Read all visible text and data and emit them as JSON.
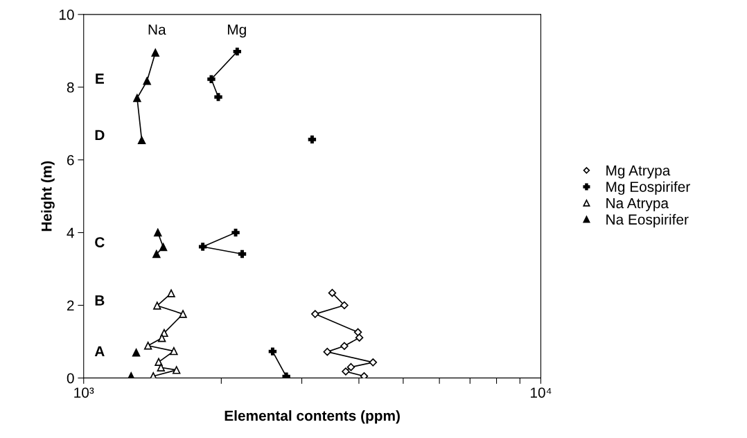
{
  "chart_data": {
    "type": "line",
    "xlabel": "Elemental contents (ppm)",
    "ylabel": "Height (m)",
    "log": "x",
    "xlim": [
      1000,
      10000
    ],
    "xticks": [
      {
        "value": 1000,
        "label": "10³"
      },
      {
        "value": 2000,
        "label": null
      },
      {
        "value": 3000,
        "label": null
      },
      {
        "value": 4000,
        "label": null
      },
      {
        "value": 5000,
        "label": null
      },
      {
        "value": 6000,
        "label": null
      },
      {
        "value": 7000,
        "label": null
      },
      {
        "value": 8000,
        "label": null
      },
      {
        "value": 9000,
        "label": null
      },
      {
        "value": 10000,
        "label": "10⁴"
      }
    ],
    "ylim": [
      0,
      10
    ],
    "yticks": [
      0,
      2,
      4,
      6,
      8,
      10
    ],
    "grid": false,
    "legend": "right",
    "line_style": "solid",
    "series": [
      {
        "name": "Mg Atrypa",
        "color": "#000000",
        "marker": "diamond",
        "x": [
          3497,
          3717,
          3209,
          3981,
          4009,
          3717,
          3411,
          4295,
          3843,
          3743,
          4106
        ],
        "values": [
          2.34,
          2.0,
          1.76,
          1.26,
          1.11,
          0.88,
          0.72,
          0.43,
          0.3,
          0.18,
          0.05
        ]
      },
      {
        "name": "Mg Eospirifer",
        "color": "#000000",
        "marker": "cross",
        "x": [
          2167,
          1902,
          1970,
          null,
          3160,
          null,
          2150,
          1822,
          2222,
          null,
          2590,
          2775
        ],
        "values": [
          8.98,
          8.22,
          7.73,
          null,
          6.56,
          null,
          4.0,
          3.61,
          3.41,
          null,
          0.73,
          0.04
        ]
      },
      {
        "name": "Na Atrypa",
        "color": "#000000",
        "marker": "triangle",
        "x": [
          1554,
          1448,
          1649,
          1500,
          1483,
          1383,
          1575,
          1459,
          1476,
          1596,
          1420
        ],
        "values": [
          2.33,
          1.99,
          1.76,
          1.24,
          1.1,
          0.89,
          0.74,
          0.44,
          0.29,
          0.22,
          0.05
        ]
      },
      {
        "name": "Na Eospirifer",
        "color": "#000000",
        "marker": "triangle",
        "x": [
          1435,
          1376,
          1309,
          1340,
          null,
          1453,
          1493,
          1443,
          null,
          1303,
          null,
          1270
        ],
        "values": [
          8.95,
          8.17,
          7.7,
          6.54,
          null,
          4.0,
          3.6,
          3.41,
          null,
          0.7,
          null,
          0.05
        ]
      }
    ],
    "annotations": [
      "Na",
      "Mg",
      "E",
      "D",
      "C",
      "B",
      "A"
    ]
  }
}
